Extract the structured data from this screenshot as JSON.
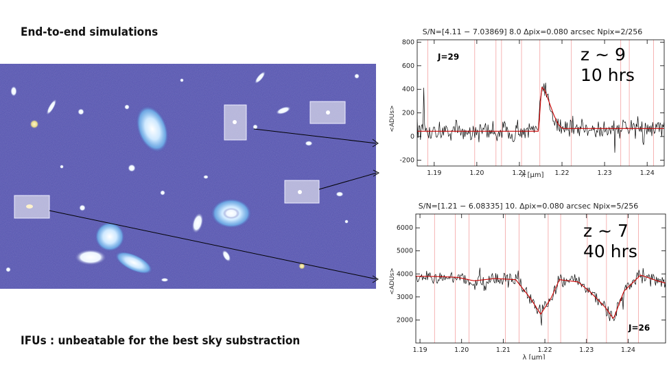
{
  "slide": {
    "heading_top": "End-to-end simulations",
    "heading_bottom": "IFUs : unbeatable for the best sky substraction"
  },
  "image": {
    "description_name": "simulated-deep-field-image",
    "highlight_color": "#c8c8dc",
    "background_color": "#4a4aa8"
  },
  "chart_data": [
    {
      "type": "line",
      "title": "S/N=[4.11 − 7.03869] 8.0 Δpix=0.080 arcsec Npix=2/256",
      "xlabel": "λ [μm]",
      "ylabel": "<ADUs>",
      "xlim": [
        1.186,
        1.244
      ],
      "ylim": [
        -250,
        820
      ],
      "xticks": [
        "1.19",
        "1.20",
        "1.21",
        "1.22",
        "1.23",
        "1.24"
      ],
      "yticks": [
        "-200",
        "0",
        "200",
        "400",
        "600",
        "800"
      ],
      "annotations": {
        "mag": "J=29",
        "redshift": "z ~ 9",
        "exposure": "10 hrs"
      },
      "grid": false,
      "model": {
        "color": "#cc0000",
        "x": [
          1.186,
          1.2145,
          1.2152,
          1.216,
          1.217,
          1.218,
          1.219,
          1.22,
          1.244
        ],
        "y": [
          45,
          45,
          420,
          390,
          290,
          190,
          110,
          68,
          68
        ]
      },
      "noise": {
        "color": "#000000",
        "amplitude": 65,
        "spikes": 16
      },
      "sky_lines": {
        "color": "#f3a0a0",
        "x": [
          1.1885,
          1.1995,
          1.2045,
          1.2058,
          1.2105,
          1.2148,
          1.2222,
          1.2338,
          1.2358,
          1.2415
        ]
      }
    },
    {
      "type": "line",
      "title": "S/N=[1.21 − 6.08335] 10. Δpix=0.080 arcsec Npix=5/256",
      "xlabel": "λ [μm]",
      "ylabel": "<ADUs>",
      "xlim": [
        1.189,
        1.249
      ],
      "ylim": [
        1000,
        6600
      ],
      "xticks": [
        "1.19",
        "1.20",
        "1.21",
        "1.22",
        "1.23",
        "1.24"
      ],
      "yticks": [
        "2000",
        "3000",
        "4000",
        "5000",
        "6000"
      ],
      "annotations": {
        "mag": "J=26",
        "redshift": "z ~ 7",
        "exposure": "40 hrs"
      },
      "grid": false,
      "model": {
        "color": "#cc0000",
        "x": [
          1.189,
          1.195,
          1.199,
          1.203,
          1.208,
          1.213,
          1.2165,
          1.219,
          1.2215,
          1.2235,
          1.228,
          1.231,
          1.2345,
          1.2365,
          1.239,
          1.243,
          1.247,
          1.249
        ],
        "y": [
          3900,
          3880,
          3850,
          3700,
          3800,
          3750,
          2950,
          2250,
          2950,
          3750,
          3650,
          3200,
          2550,
          2050,
          3250,
          3950,
          3700,
          3600
        ]
      },
      "noise": {
        "color": "#000000",
        "amplitude": 230,
        "spikes": 14
      },
      "sky_lines": {
        "color": "#f3a0a0",
        "x": [
          1.1935,
          1.1985,
          1.2018,
          1.2105,
          1.2138,
          1.2208,
          1.2238,
          1.2302,
          1.2348,
          1.2398,
          1.2425
        ]
      }
    }
  ]
}
